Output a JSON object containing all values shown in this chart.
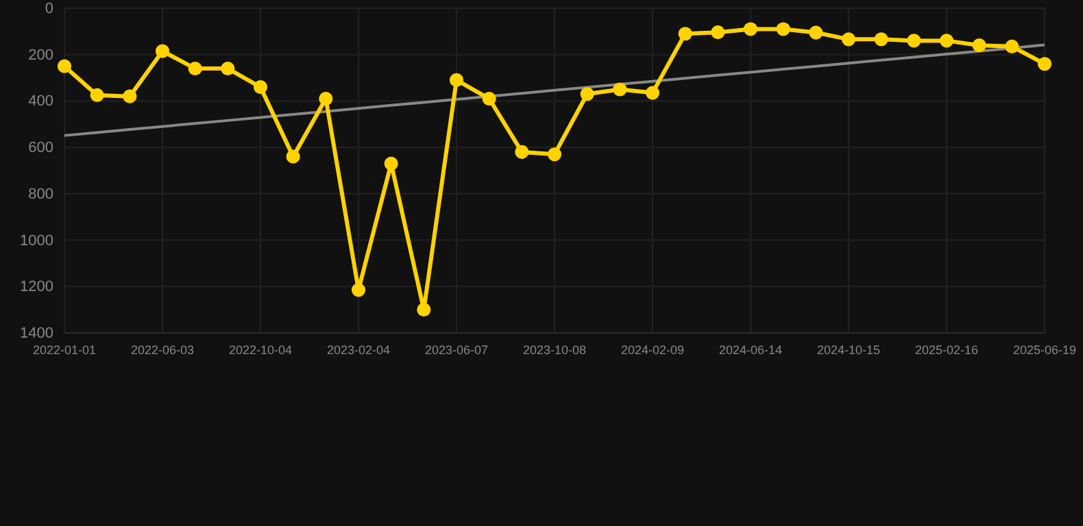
{
  "chart_data": {
    "type": "line",
    "categories": [
      "2022-01-01",
      null,
      null,
      "2022-06-03",
      null,
      null,
      "2022-10-04",
      null,
      null,
      "2023-02-04",
      null,
      null,
      "2023-06-07",
      null,
      null,
      "2023-10-08",
      null,
      null,
      "2024-02-09",
      null,
      null,
      "2024-06-14",
      null,
      null,
      "2024-10-15",
      null,
      null,
      "2025-02-16",
      null,
      null,
      "2025-06-19"
    ],
    "series": [
      {
        "color": "#ffd200",
        "marker": "circle",
        "values": [
          250,
          375,
          380,
          185,
          260,
          260,
          340,
          640,
          390,
          1215,
          670,
          1300,
          310,
          390,
          620,
          630,
          370,
          350,
          365,
          110,
          104,
          90,
          90,
          105,
          134,
          134,
          140,
          140,
          160,
          165,
          240
        ]
      },
      {
        "type": "line",
        "color": "#888888",
        "marker": "none",
        "values": [
          549,
          536,
          523,
          510,
          497,
          484,
          471,
          458,
          445,
          432,
          419,
          406,
          393,
          380,
          367,
          354,
          341,
          328,
          315,
          302,
          289,
          276,
          263,
          250,
          237,
          224,
          211,
          198,
          185,
          172,
          158
        ]
      }
    ],
    "ylim": [
      1400,
      0
    ],
    "yticks": [
      0,
      200,
      400,
      600,
      800,
      1000,
      1200,
      1400
    ],
    "grid": true
  }
}
